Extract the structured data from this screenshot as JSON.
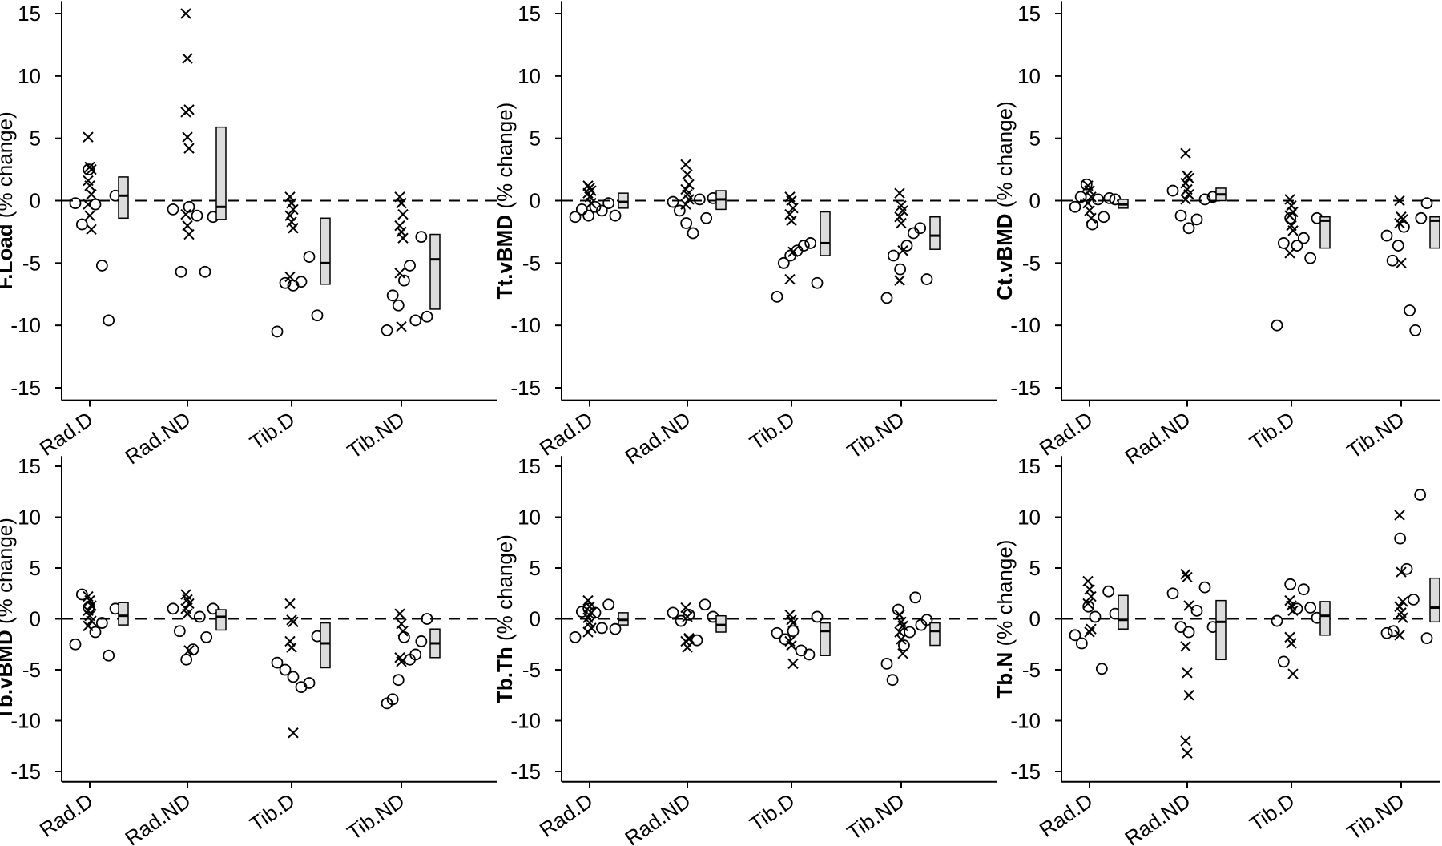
{
  "categories": [
    "Rad.D",
    "Rad.ND",
    "Tib.D",
    "Tib.ND"
  ],
  "y_ticks": [
    15,
    10,
    5,
    0,
    -5,
    -10,
    -15
  ],
  "colors": {
    "box_fill": "#dcdcdc",
    "stroke": "#000000",
    "background": "#ffffff"
  },
  "chart_data": [
    {
      "type": "scatter",
      "ylabel_bold": "F.Load",
      "ylabel_rest": " (% change)",
      "ylim": [
        -16,
        16
      ],
      "x_groups": [
        "Rad.D",
        "Rad.ND",
        "Tib.D",
        "Tib.ND"
      ],
      "series": [
        {
          "marker": "x",
          "values": [
            [
              5.1,
              2.7,
              2.5,
              1.6,
              1.2,
              0.5,
              -0.3,
              -1.2,
              -2.3
            ],
            [
              15,
              11.4,
              7.3,
              7.1,
              5.1,
              4.2,
              -1.1,
              -2.0,
              -2.7
            ],
            [
              0.3,
              -0.2,
              -0.7,
              -1.2,
              -1.7,
              -2.2,
              -6.1
            ],
            [
              0.3,
              -0.2,
              -1.1,
              -2.0,
              -2.5,
              -3.0,
              -5.8,
              -10.1
            ]
          ]
        },
        {
          "marker": "o",
          "values": [
            [
              -0.2,
              -1.9,
              2.5,
              -0.3,
              -5.2,
              -9.6,
              0.4
            ],
            [
              -0.7,
              -5.7,
              -0.5,
              -1.2,
              -5.7,
              -1.3
            ],
            [
              -10.5,
              -6.6,
              -6.8,
              -6.5,
              -4.5,
              -9.2
            ],
            [
              -10.4,
              -7.6,
              -8.4,
              -6.4,
              -5.2,
              -9.6,
              -2.9,
              -9.3
            ]
          ]
        }
      ],
      "summary": [
        {
          "median": 0.4,
          "low": -1.4,
          "high": 1.9
        },
        {
          "median": -0.5,
          "low": -1.5,
          "high": 5.9
        },
        {
          "median": -5.0,
          "low": -6.7,
          "high": -1.4
        },
        {
          "median": -4.7,
          "low": -8.7,
          "high": -2.7
        }
      ]
    },
    {
      "type": "scatter",
      "ylabel_bold": "Tt.vBMD",
      "ylabel_rest": " (% change)",
      "ylim": [
        -16,
        16
      ],
      "x_groups": [
        "Rad.D",
        "Rad.ND",
        "Tib.D",
        "Tib.ND"
      ],
      "series": [
        {
          "marker": "x",
          "values": [
            [
              1.2,
              1.0,
              0.8,
              0.6,
              0.3,
              -0.2
            ],
            [
              2.9,
              2.1,
              1.3,
              0.9,
              0.5,
              0.1,
              -0.3
            ],
            [
              0.3,
              0.0,
              -0.6,
              -1.1,
              -1.6,
              -4.1,
              -6.3
            ],
            [
              0.6,
              -0.4,
              -0.8,
              -1.3,
              -1.8,
              -4.0,
              -6.4
            ]
          ]
        },
        {
          "marker": "o",
          "values": [
            [
              -1.3,
              -0.7,
              -1.2,
              -0.5,
              -0.8,
              -0.2,
              -1.2
            ],
            [
              -0.1,
              -0.8,
              -1.8,
              -2.6,
              0.1,
              -1.4,
              0.2
            ],
            [
              -7.7,
              -5.0,
              -4.4,
              -4.0,
              -3.6,
              -3.4,
              -6.6
            ],
            [
              -7.8,
              -4.4,
              -5.5,
              -3.6,
              -2.6,
              -2.2,
              -6.3
            ]
          ]
        }
      ],
      "summary": [
        {
          "median": -0.1,
          "low": -0.6,
          "high": 0.6
        },
        {
          "median": 0.1,
          "low": -0.7,
          "high": 0.8
        },
        {
          "median": -3.4,
          "low": -4.4,
          "high": -0.9
        },
        {
          "median": -2.8,
          "low": -3.9,
          "high": -1.3
        }
      ]
    },
    {
      "type": "scatter",
      "ylabel_bold": "Ct.vBMD",
      "ylabel_rest": " (% change)",
      "ylim": [
        -16,
        16
      ],
      "x_groups": [
        "Rad.D",
        "Rad.ND",
        "Tib.D",
        "Tib.ND"
      ],
      "series": [
        {
          "marker": "x",
          "values": [
            [
              1.2,
              0.8,
              0.3,
              -0.2,
              -0.8,
              -1.4
            ],
            [
              3.8,
              2.0,
              1.8,
              1.4,
              0.9,
              0.5,
              0.1
            ],
            [
              0.1,
              -0.4,
              -0.9,
              -1.2,
              -2.0,
              -2.4,
              -4.2
            ],
            [
              0.0,
              -1.3,
              -1.5,
              -1.8,
              -5.0
            ]
          ]
        },
        {
          "marker": "o",
          "values": [
            [
              -0.5,
              0.3,
              1.3,
              -1.9,
              0.1,
              -1.3,
              0.2,
              0.1
            ],
            [
              0.8,
              -1.2,
              -2.2,
              -1.5,
              0.1,
              0.3
            ],
            [
              -10.0,
              -3.4,
              -1.4,
              -3.6,
              -3.0,
              -4.6,
              -1.4
            ],
            [
              -2.8,
              -4.8,
              -3.6,
              -2.1,
              -8.8,
              -10.4,
              -1.4,
              -0.2
            ]
          ]
        }
      ],
      "summary": [
        {
          "median": -0.3,
          "low": -0.6,
          "high": 0.1
        },
        {
          "median": 0.5,
          "low": 0.0,
          "high": 1.0
        },
        {
          "median": -1.6,
          "low": -3.8,
          "high": -1.3
        },
        {
          "median": -1.6,
          "low": -3.8,
          "high": -1.3
        }
      ]
    },
    {
      "type": "scatter",
      "ylabel_bold": "Tb.vBMD",
      "ylabel_rest": " (% change)",
      "ylim": [
        -16,
        16
      ],
      "x_groups": [
        "Rad.D",
        "Rad.ND",
        "Tib.D",
        "Tib.ND"
      ],
      "series": [
        {
          "marker": "x",
          "values": [
            [
              2.2,
              1.8,
              1.3,
              0.8,
              0.3,
              -0.2,
              -0.7
            ],
            [
              2.4,
              1.9,
              1.5,
              1.0,
              0.5,
              -3.1
            ],
            [
              1.5,
              -0.1,
              -0.3,
              -2.2,
              -2.8,
              -11.2
            ],
            [
              0.5,
              -0.5,
              -1.2,
              -3.8,
              -4.2
            ]
          ]
        },
        {
          "marker": "o",
          "values": [
            [
              -2.5,
              2.4,
              1.1,
              -1.3,
              -0.4,
              -3.6,
              1.0
            ],
            [
              1.0,
              -1.2,
              -4.0,
              -3.0,
              0.2,
              -1.8,
              1.0
            ],
            [
              -4.3,
              -5.0,
              -5.7,
              -6.7,
              -6.3,
              -1.7
            ],
            [
              -8.3,
              -7.9,
              -6.0,
              -1.8,
              -4.0,
              -3.5,
              -2.2,
              0.0
            ]
          ]
        }
      ],
      "summary": [
        {
          "median": 0.3,
          "low": -0.6,
          "high": 1.6
        },
        {
          "median": 0.2,
          "low": -1.1,
          "high": 0.9
        },
        {
          "median": -2.4,
          "low": -4.8,
          "high": -0.4
        },
        {
          "median": -2.4,
          "low": -3.8,
          "high": -1.0
        }
      ]
    },
    {
      "type": "scatter",
      "ylabel_bold": "Tb.Th",
      "ylabel_rest": " (% change)",
      "ylim": [
        -16,
        16
      ],
      "x_groups": [
        "Rad.D",
        "Rad.ND",
        "Tib.D",
        "Tib.ND"
      ],
      "series": [
        {
          "marker": "x",
          "values": [
            [
              1.8,
              1.2,
              0.6,
              0.1,
              -0.4,
              -0.9,
              -1.3
            ],
            [
              1.1,
              0.2,
              -1.9,
              -2.2,
              -2.8,
              -2.0
            ],
            [
              0.4,
              -0.1,
              -0.4,
              -2.2,
              -2.6,
              -4.4
            ],
            [
              0.4,
              -0.3,
              -0.7,
              -1.3,
              -2.0,
              -3.4
            ]
          ]
        },
        {
          "marker": "o",
          "values": [
            [
              -1.8,
              0.7,
              1.0,
              0.6,
              -0.9,
              1.4,
              -1.0
            ],
            [
              0.6,
              -0.2,
              0.4,
              -2.1,
              1.4,
              0.2
            ],
            [
              -1.4,
              -2.0,
              -1.2,
              -3.1,
              -3.5,
              0.2
            ],
            [
              -4.4,
              -6.0,
              0.9,
              -2.6,
              -1.3,
              2.1,
              -0.6,
              -0.1
            ]
          ]
        }
      ],
      "summary": [
        {
          "median": -0.1,
          "low": -0.6,
          "high": 0.6
        },
        {
          "median": -0.6,
          "low": -1.3,
          "high": 0.3
        },
        {
          "median": -1.2,
          "low": -3.6,
          "high": -0.4
        },
        {
          "median": -1.2,
          "low": -2.6,
          "high": -0.4
        }
      ]
    },
    {
      "type": "scatter",
      "ylabel_bold": "Tb.N",
      "ylabel_rest": " (% change)",
      "ylim": [
        -16,
        16
      ],
      "x_groups": [
        "Rad.D",
        "Rad.ND",
        "Tib.D",
        "Tib.ND"
      ],
      "series": [
        {
          "marker": "x",
          "values": [
            [
              3.7,
              2.9,
              2.2,
              1.5,
              -1.3,
              -1.0
            ],
            [
              4.4,
              4.1,
              1.3,
              -2.7,
              -5.3,
              -7.5,
              -12.0,
              -13.2
            ],
            [
              1.8,
              1.3,
              0.8,
              -1.8,
              -2.4,
              -5.4
            ],
            [
              10.2,
              4.6,
              1.7,
              1.2,
              0.6,
              0.1,
              -1.6
            ]
          ]
        },
        {
          "marker": "o",
          "values": [
            [
              -1.6,
              -2.4,
              1.2,
              0.2,
              -4.9,
              2.7,
              0.5
            ],
            [
              2.5,
              -0.8,
              -1.3,
              0.8,
              3.1,
              -0.8
            ],
            [
              -0.2,
              -4.2,
              3.4,
              1.0,
              2.9,
              1.1,
              0.1
            ],
            [
              -1.4,
              -1.2,
              7.9,
              4.9,
              1.9,
              12.2,
              -1.9
            ]
          ]
        }
      ],
      "summary": [
        {
          "median": -0.1,
          "low": -1.0,
          "high": 2.3
        },
        {
          "median": -0.3,
          "low": -4.0,
          "high": 1.8
        },
        {
          "median": 0.3,
          "low": -1.6,
          "high": 1.7
        },
        {
          "median": 1.1,
          "low": -0.3,
          "high": 4.0
        }
      ]
    }
  ]
}
